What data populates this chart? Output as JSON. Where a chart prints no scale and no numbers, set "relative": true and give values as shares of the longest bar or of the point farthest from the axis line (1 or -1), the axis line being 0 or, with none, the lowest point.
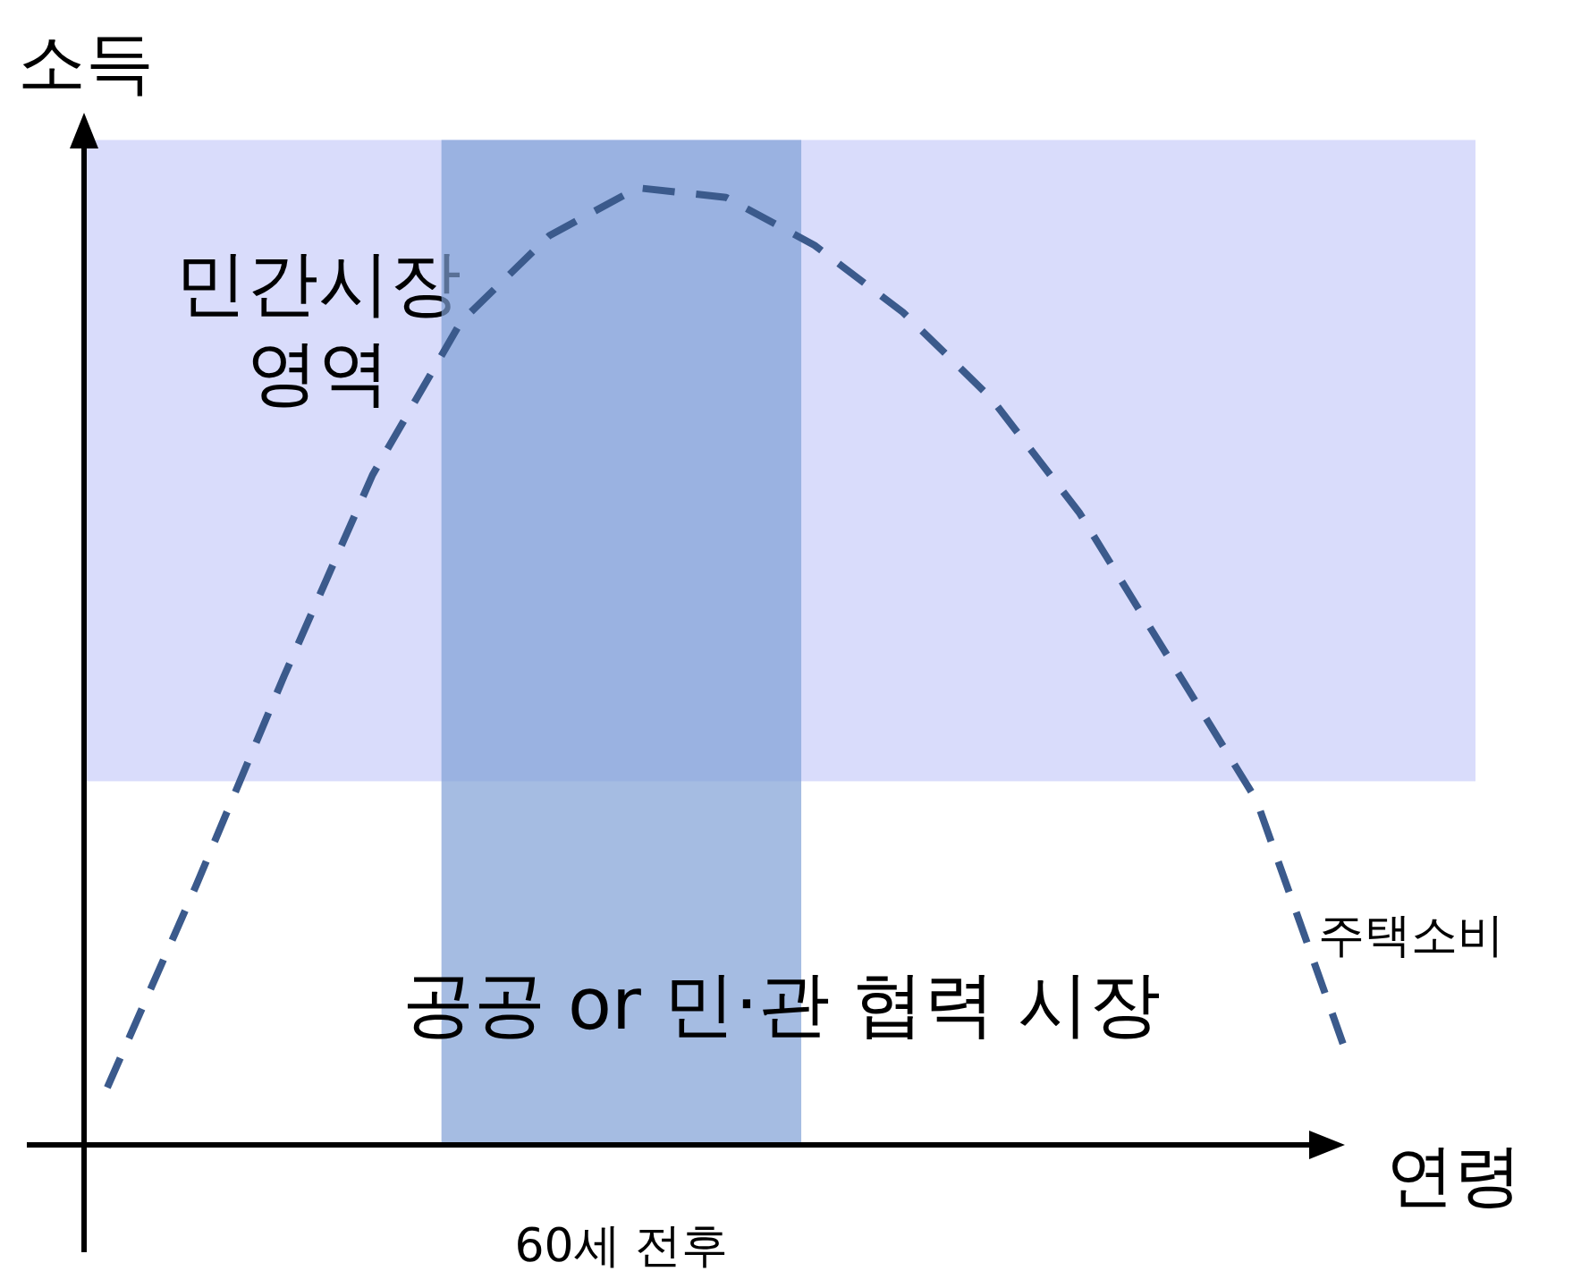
{
  "chart_data": {
    "type": "line",
    "relative": true,
    "xlabel": "연령",
    "ylabel": "소득",
    "categories": [
      null,
      null,
      null,
      null,
      null,
      null,
      null,
      null,
      null,
      null,
      null,
      null,
      null,
      null,
      null
    ],
    "series": [
      {
        "name": "주택소비",
        "color": "#3b5a8c",
        "line_style": "dashed",
        "values": [
          0.06,
          0.27,
          0.49,
          0.7,
          0.86,
          0.95,
          1.0,
          0.99,
          0.94,
          0.87,
          0.78,
          0.66,
          0.51,
          0.36,
          0.1
        ]
      }
    ],
    "bands": [
      {
        "axis": "y",
        "from": 0.38,
        "to": 1.05,
        "label": "민간시장\n영역",
        "color": "#c9cdfa"
      }
    ],
    "annotations": [
      "공공 or 민·관 협력 시장",
      "60세 전후"
    ]
  }
}
